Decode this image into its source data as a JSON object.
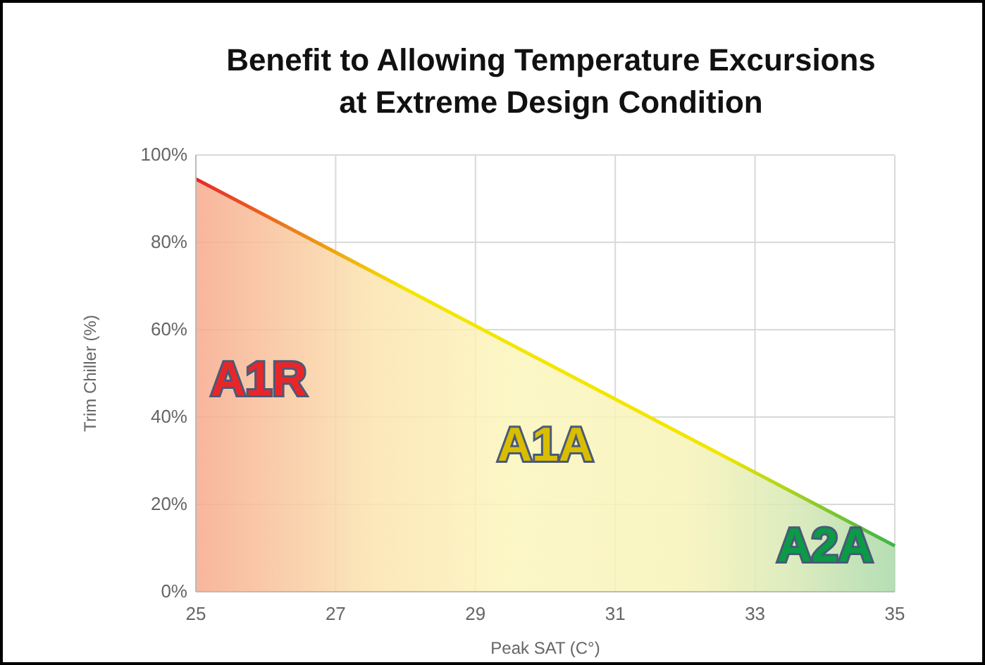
{
  "chart_data": {
    "type": "area",
    "title": "Benefit to Allowing Temperature Excursions at Extreme Design Condition",
    "xlabel": "Peak SAT (C°)",
    "ylabel": "Trim Chiller (%)",
    "x": [
      25,
      35
    ],
    "series": [
      {
        "values": [
          94.5,
          10.5
        ]
      }
    ],
    "xlim": [
      25,
      35
    ],
    "xticks": [
      25,
      27,
      29,
      31,
      33,
      35
    ],
    "ylim": [
      0,
      100
    ],
    "yticks": [
      {
        "value": 0,
        "label": "0%"
      },
      {
        "value": 20,
        "label": "20%"
      },
      {
        "value": 40,
        "label": "40%"
      },
      {
        "value": 60,
        "label": "60%"
      },
      {
        "value": 80,
        "label": "80%"
      },
      {
        "value": 100,
        "label": "100%"
      }
    ],
    "grid": true,
    "annotations": [
      "A1R",
      "A1A",
      "A2A"
    ]
  }
}
